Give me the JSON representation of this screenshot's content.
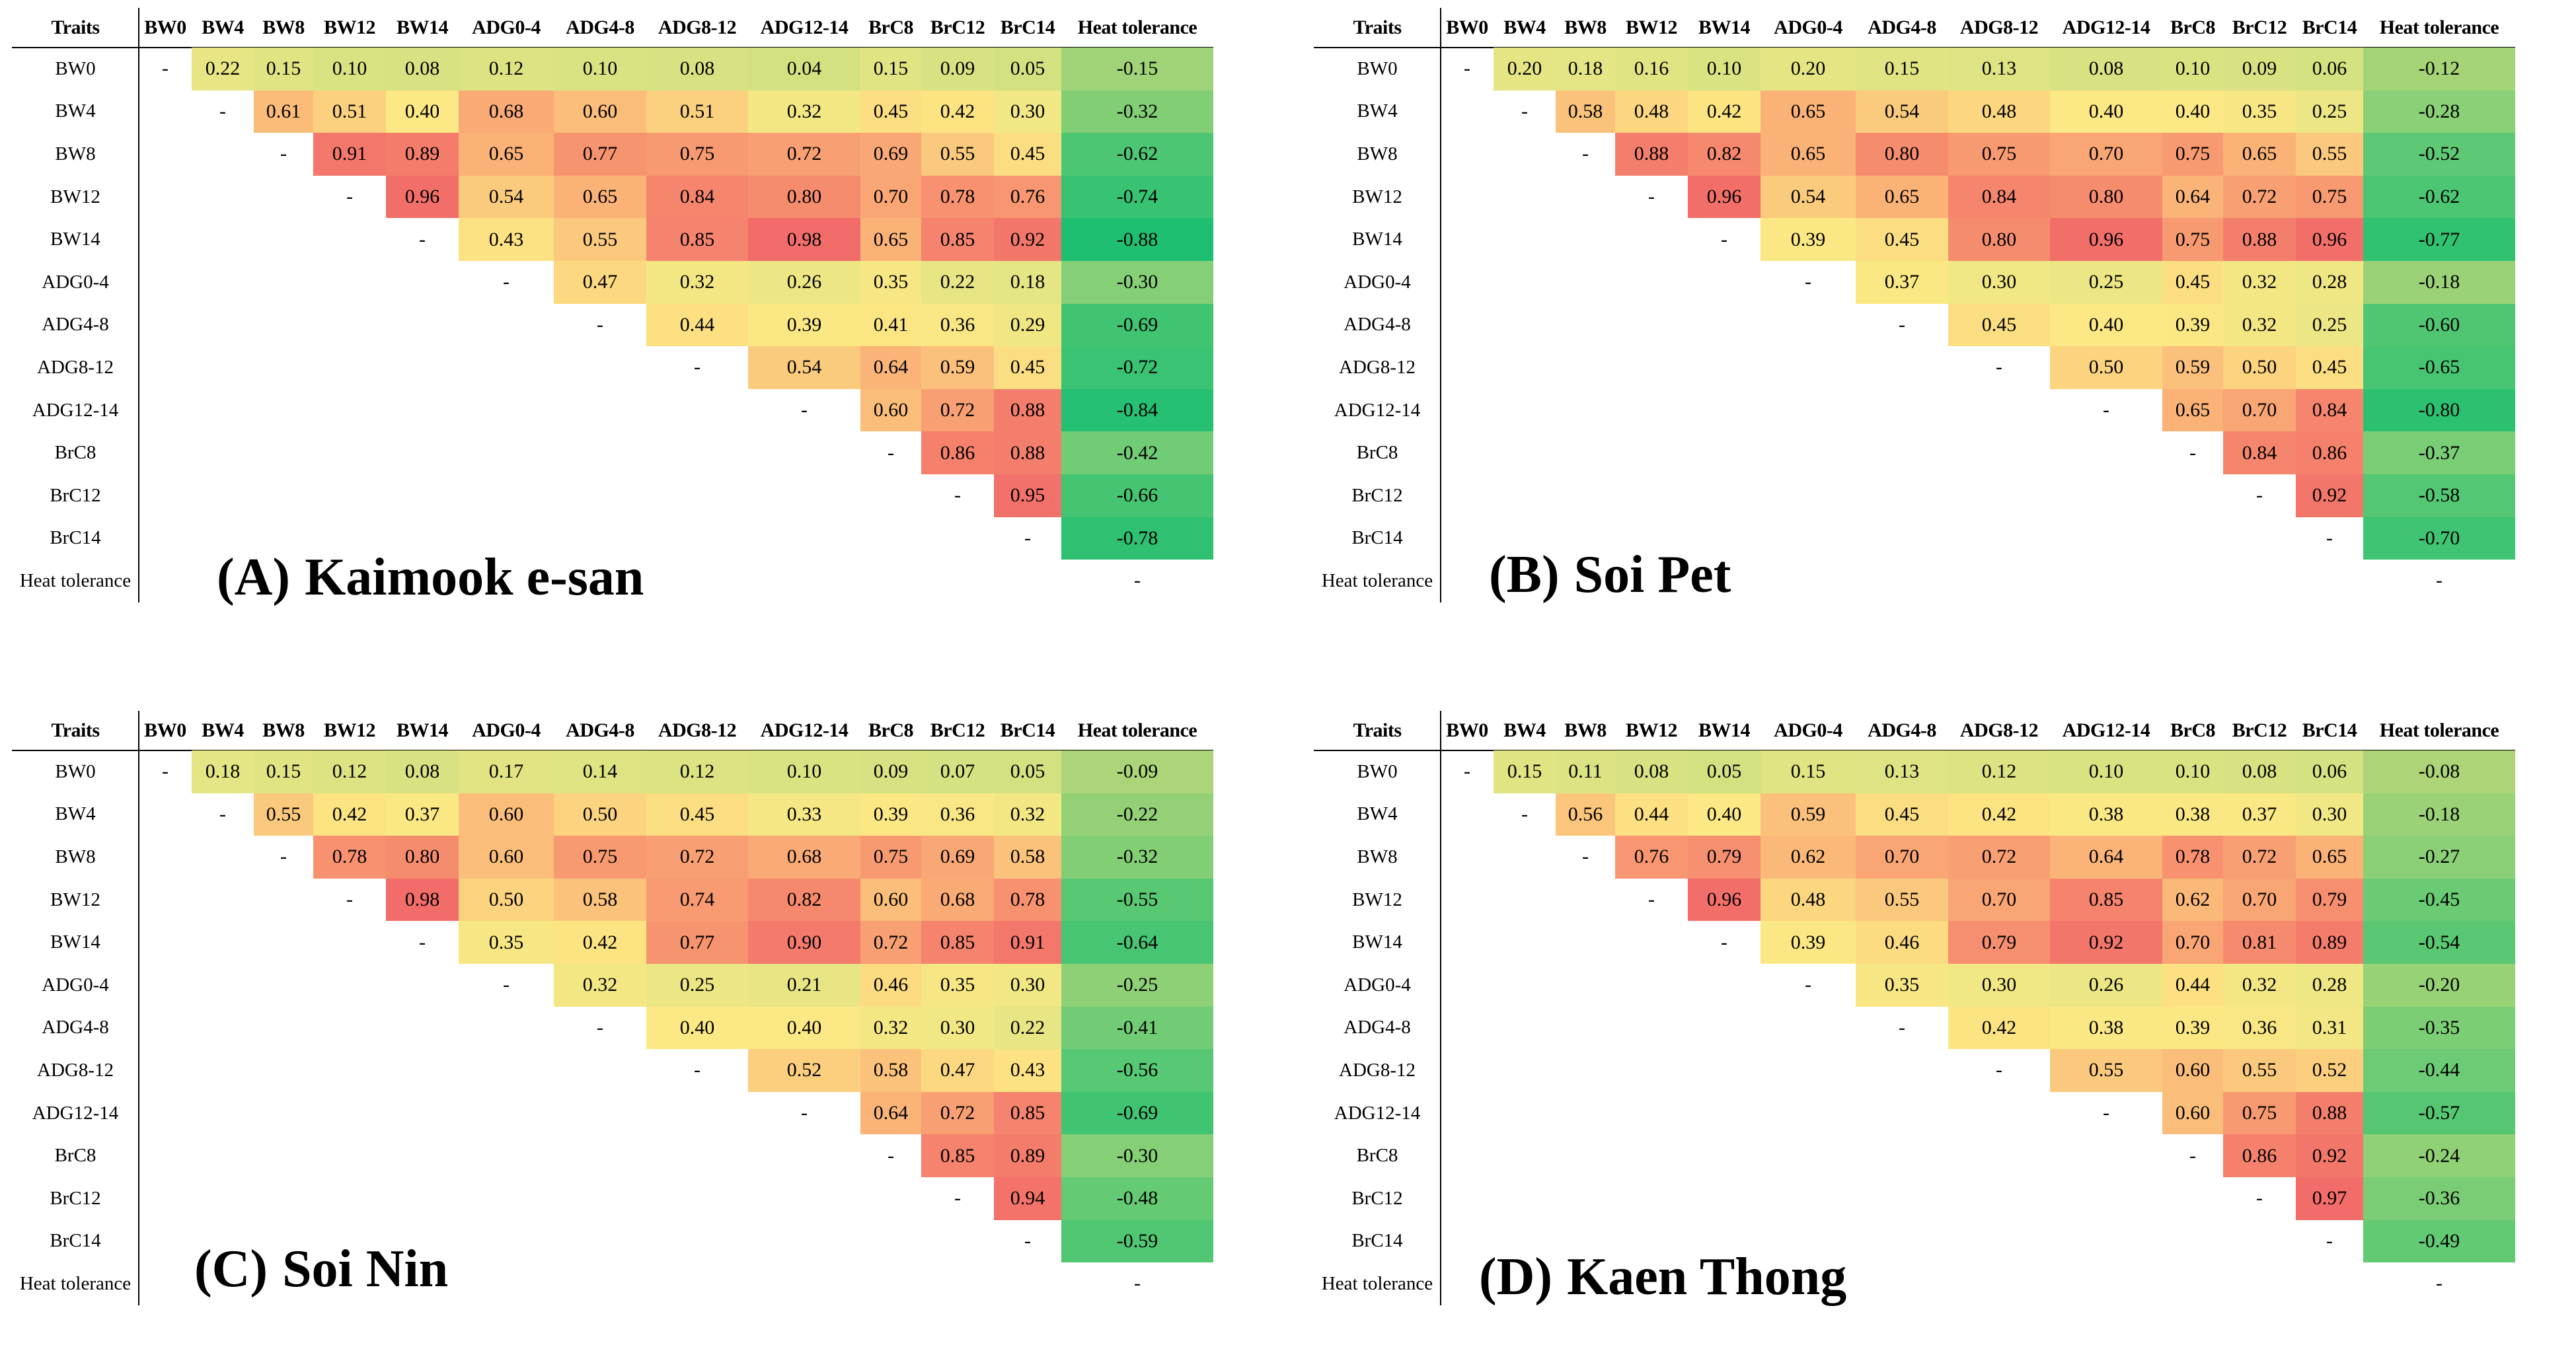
{
  "chart_data": [
    {
      "type": "heatmap",
      "panel_label": "(A)",
      "title": "Kaimook e-san",
      "corner_label": "Traits",
      "columns": [
        "BW0",
        "BW4",
        "BW8",
        "BW12",
        "BW14",
        "ADG0-4",
        "ADG4-8",
        "ADG8-12",
        "ADG12-14",
        "BrC8",
        "BrC12",
        "BrC14",
        "Heat tolerance"
      ],
      "rows": [
        "BW0",
        "BW4",
        "BW8",
        "BW12",
        "BW14",
        "ADG0-4",
        "ADG4-8",
        "ADG8-12",
        "ADG12-14",
        "BrC8",
        "BrC12",
        "BrC14",
        "Heat tolerance"
      ],
      "diagonal_symbol": "-",
      "values": [
        [
          "0.22",
          "0.15",
          "0.10",
          "0.08",
          "0.12",
          "0.10",
          "0.08",
          "0.04",
          "0.15",
          "0.09",
          "0.05",
          "-0.15"
        ],
        [
          "0.61",
          "0.51",
          "0.40",
          "0.68",
          "0.60",
          "0.51",
          "0.32",
          "0.45",
          "0.42",
          "0.30",
          "-0.32"
        ],
        [
          "0.91",
          "0.89",
          "0.65",
          "0.77",
          "0.75",
          "0.72",
          "0.69",
          "0.55",
          "0.45",
          "-0.62"
        ],
        [
          "0.96",
          "0.54",
          "0.65",
          "0.84",
          "0.80",
          "0.70",
          "0.78",
          "0.76",
          "-0.74"
        ],
        [
          "0.43",
          "0.55",
          "0.85",
          "0.98",
          "0.65",
          "0.85",
          "0.92",
          "-0.88"
        ],
        [
          "0.47",
          "0.32",
          "0.26",
          "0.35",
          "0.22",
          "0.18",
          "-0.30"
        ],
        [
          "0.44",
          "0.39",
          "0.41",
          "0.36",
          "0.29",
          "-0.69"
        ],
        [
          "0.54",
          "0.64",
          "0.59",
          "0.45",
          "-0.72"
        ],
        [
          "0.60",
          "0.72",
          "0.88",
          "-0.84"
        ],
        [
          "0.86",
          "0.88",
          "-0.42"
        ],
        [
          "0.95",
          "-0.66"
        ],
        [
          "-0.78"
        ],
        []
      ]
    },
    {
      "type": "heatmap",
      "panel_label": "(B)",
      "title": "Soi Pet",
      "corner_label": "Traits",
      "columns": [
        "BW0",
        "BW4",
        "BW8",
        "BW12",
        "BW14",
        "ADG0-4",
        "ADG4-8",
        "ADG8-12",
        "ADG12-14",
        "BrC8",
        "BrC12",
        "BrC14",
        "Heat tolerance"
      ],
      "rows": [
        "BW0",
        "BW4",
        "BW8",
        "BW12",
        "BW14",
        "ADG0-4",
        "ADG4-8",
        "ADG8-12",
        "ADG12-14",
        "BrC8",
        "BrC12",
        "BrC14",
        "Heat tolerance"
      ],
      "diagonal_symbol": "-",
      "values": [
        [
          "0.20",
          "0.18",
          "0.16",
          "0.10",
          "0.20",
          "0.15",
          "0.13",
          "0.08",
          "0.10",
          "0.09",
          "0.06",
          "-0.12"
        ],
        [
          "0.58",
          "0.48",
          "0.42",
          "0.65",
          "0.54",
          "0.48",
          "0.40",
          "0.40",
          "0.35",
          "0.25",
          "-0.28"
        ],
        [
          "0.88",
          "0.82",
          "0.65",
          "0.80",
          "0.75",
          "0.70",
          "0.75",
          "0.65",
          "0.55",
          "-0.52"
        ],
        [
          "0.96",
          "0.54",
          "0.65",
          "0.84",
          "0.80",
          "0.64",
          "0.72",
          "0.75",
          "-0.62"
        ],
        [
          "0.39",
          "0.45",
          "0.80",
          "0.96",
          "0.75",
          "0.88",
          "0.96",
          "-0.77"
        ],
        [
          "0.37",
          "0.30",
          "0.25",
          "0.45",
          "0.32",
          "0.28",
          "-0.18"
        ],
        [
          "0.45",
          "0.40",
          "0.39",
          "0.32",
          "0.25",
          "-0.60"
        ],
        [
          "0.50",
          "0.59",
          "0.50",
          "0.45",
          "-0.65"
        ],
        [
          "0.65",
          "0.70",
          "0.84",
          "-0.80"
        ],
        [
          "0.84",
          "0.86",
          "-0.37"
        ],
        [
          "0.92",
          "-0.58"
        ],
        [
          "-0.70"
        ],
        []
      ]
    },
    {
      "type": "heatmap",
      "panel_label": "(C)",
      "title": "Soi Nin",
      "corner_label": "Traits",
      "columns": [
        "BW0",
        "BW4",
        "BW8",
        "BW12",
        "BW14",
        "ADG0-4",
        "ADG4-8",
        "ADG8-12",
        "ADG12-14",
        "BrC8",
        "BrC12",
        "BrC14",
        "Heat tolerance"
      ],
      "rows": [
        "BW0",
        "BW4",
        "BW8",
        "BW12",
        "BW14",
        "ADG0-4",
        "ADG4-8",
        "ADG8-12",
        "ADG12-14",
        "BrC8",
        "BrC12",
        "BrC14",
        "Heat tolerance"
      ],
      "diagonal_symbol": "-",
      "values": [
        [
          "0.18",
          "0.15",
          "0.12",
          "0.08",
          "0.17",
          "0.14",
          "0.12",
          "0.10",
          "0.09",
          "0.07",
          "0.05",
          "-0.09"
        ],
        [
          "0.55",
          "0.42",
          "0.37",
          "0.60",
          "0.50",
          "0.45",
          "0.33",
          "0.39",
          "0.36",
          "0.32",
          "-0.22"
        ],
        [
          "0.78",
          "0.80",
          "0.60",
          "0.75",
          "0.72",
          "0.68",
          "0.75",
          "0.69",
          "0.58",
          "-0.32"
        ],
        [
          "0.98",
          "0.50",
          "0.58",
          "0.74",
          "0.82",
          "0.60",
          "0.68",
          "0.78",
          "-0.55"
        ],
        [
          "0.35",
          "0.42",
          "0.77",
          "0.90",
          "0.72",
          "0.85",
          "0.91",
          "-0.64"
        ],
        [
          "0.32",
          "0.25",
          "0.21",
          "0.46",
          "0.35",
          "0.30",
          "-0.25"
        ],
        [
          "0.40",
          "0.40",
          "0.32",
          "0.30",
          "0.22",
          "-0.41"
        ],
        [
          "0.52",
          "0.58",
          "0.47",
          "0.43",
          "-0.56"
        ],
        [
          "0.64",
          "0.72",
          "0.85",
          "-0.69"
        ],
        [
          "0.85",
          "0.89",
          "-0.30"
        ],
        [
          "0.94",
          "-0.48"
        ],
        [
          "-0.59"
        ],
        []
      ]
    },
    {
      "type": "heatmap",
      "panel_label": "(D)",
      "title": "Kaen Thong",
      "corner_label": "Traits",
      "columns": [
        "BW0",
        "BW4",
        "BW8",
        "BW12",
        "BW14",
        "ADG0-4",
        "ADG4-8",
        "ADG8-12",
        "ADG12-14",
        "BrC8",
        "BrC12",
        "BrC14",
        "Heat tolerance"
      ],
      "rows": [
        "BW0",
        "BW4",
        "BW8",
        "BW12",
        "BW14",
        "ADG0-4",
        "ADG4-8",
        "ADG8-12",
        "ADG12-14",
        "BrC8",
        "BrC12",
        "BrC14",
        "Heat tolerance"
      ],
      "diagonal_symbol": "-",
      "values": [
        [
          "0.15",
          "0.11",
          "0.08",
          "0.05",
          "0.15",
          "0.13",
          "0.12",
          "0.10",
          "0.10",
          "0.08",
          "0.06",
          "-0.08"
        ],
        [
          "0.56",
          "0.44",
          "0.40",
          "0.59",
          "0.45",
          "0.42",
          "0.38",
          "0.38",
          "0.37",
          "0.30",
          "-0.18"
        ],
        [
          "0.76",
          "0.79",
          "0.62",
          "0.70",
          "0.72",
          "0.64",
          "0.78",
          "0.72",
          "0.65",
          "-0.27"
        ],
        [
          "0.96",
          "0.48",
          "0.55",
          "0.70",
          "0.85",
          "0.62",
          "0.70",
          "0.79",
          "-0.45"
        ],
        [
          "0.39",
          "0.46",
          "0.79",
          "0.92",
          "0.70",
          "0.81",
          "0.89",
          "-0.54"
        ],
        [
          "0.35",
          "0.30",
          "0.26",
          "0.44",
          "0.32",
          "0.28",
          "-0.20"
        ],
        [
          "0.42",
          "0.38",
          "0.39",
          "0.36",
          "0.31",
          "-0.35"
        ],
        [
          "0.55",
          "0.60",
          "0.55",
          "0.52",
          "-0.44"
        ],
        [
          "0.60",
          "0.75",
          "0.88",
          "-0.57"
        ],
        [
          "0.86",
          "0.92",
          "-0.24"
        ],
        [
          "0.97",
          "-0.36"
        ],
        [
          "-0.49"
        ],
        []
      ]
    }
  ]
}
